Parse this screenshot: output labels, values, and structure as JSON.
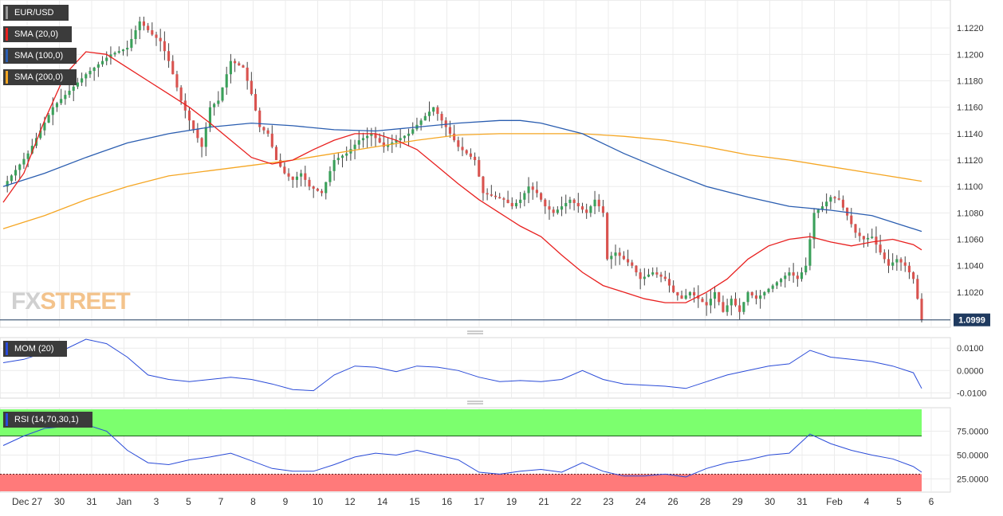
{
  "chart_data": {
    "type": "candlestick",
    "symbol": "EUR/USD",
    "current_price": "1.0999",
    "main_panel": {
      "ylim": [
        1.0994,
        1.124
      ],
      "y_ticks": [
        "1.1220",
        "1.1200",
        "1.1180",
        "1.1160",
        "1.1140",
        "1.1120",
        "1.1100",
        "1.1080",
        "1.1060",
        "1.1040",
        "1.1020"
      ],
      "grid": true
    },
    "x_tick_labels": [
      "Dec 27",
      "30",
      "31",
      "Jan",
      "3",
      "5",
      "7",
      "8",
      "9",
      "10",
      "12",
      "14",
      "15",
      "16",
      "17",
      "19",
      "21",
      "22",
      "23",
      "24",
      "26",
      "28",
      "29",
      "30",
      "31",
      "Feb",
      "4",
      "5",
      "6"
    ],
    "legend": [
      {
        "label": "EUR/USD",
        "color": "#999999"
      },
      {
        "label": "SMA (20,0)",
        "color": "#e8201f"
      },
      {
        "label": "SMA (100,0)",
        "color": "#2a5db0"
      },
      {
        "label": "SMA (200,0)",
        "color": "#f5a623"
      }
    ],
    "price_path": [
      [
        0,
        1.11
      ],
      [
        6,
        1.1125
      ],
      [
        12,
        1.116
      ],
      [
        20,
        1.1185
      ],
      [
        26,
        1.12
      ],
      [
        30,
        1.1205
      ],
      [
        33,
        1.1225
      ],
      [
        36,
        1.1215
      ],
      [
        38,
        1.121
      ],
      [
        40,
        1.1195
      ],
      [
        43,
        1.1165
      ],
      [
        45,
        1.115
      ],
      [
        48,
        1.113
      ],
      [
        50,
        1.116
      ],
      [
        52,
        1.1165
      ],
      [
        55,
        1.1195
      ],
      [
        58,
        1.119
      ],
      [
        60,
        1.117
      ],
      [
        62,
        1.1145
      ],
      [
        64,
        1.114
      ],
      [
        66,
        1.112
      ],
      [
        68,
        1.111
      ],
      [
        70,
        1.1105
      ],
      [
        72,
        1.111
      ],
      [
        74,
        1.11
      ],
      [
        77,
        1.1095
      ],
      [
        80,
        1.112
      ],
      [
        83,
        1.1125
      ],
      [
        86,
        1.1135
      ],
      [
        89,
        1.114
      ],
      [
        92,
        1.113
      ],
      [
        95,
        1.1135
      ],
      [
        98,
        1.114
      ],
      [
        101,
        1.115
      ],
      [
        104,
        1.116
      ],
      [
        106,
        1.115
      ],
      [
        108,
        1.114
      ],
      [
        110,
        1.113
      ],
      [
        112,
        1.1125
      ],
      [
        114,
        1.112
      ],
      [
        116,
        1.1095
      ],
      [
        119,
        1.1092
      ],
      [
        121,
        1.109
      ],
      [
        123,
        1.1085
      ],
      [
        125,
        1.109
      ],
      [
        127,
        1.11
      ],
      [
        129,
        1.1095
      ],
      [
        131,
        1.1085
      ],
      [
        133,
        1.108
      ],
      [
        135,
        1.1085
      ],
      [
        137,
        1.109
      ],
      [
        139,
        1.1085
      ],
      [
        141,
        1.108
      ],
      [
        143,
        1.109
      ],
      [
        145,
        1.108
      ],
      [
        146,
        1.1045
      ],
      [
        148,
        1.105
      ],
      [
        150,
        1.1045
      ],
      [
        152,
        1.104
      ],
      [
        154,
        1.103
      ],
      [
        157,
        1.1035
      ],
      [
        160,
        1.103
      ],
      [
        162,
        1.102
      ],
      [
        164,
        1.1015
      ],
      [
        166,
        1.102
      ],
      [
        168,
        1.1015
      ],
      [
        170,
        1.101
      ],
      [
        172,
        1.102
      ],
      [
        174,
        1.1005
      ],
      [
        176,
        1.1015
      ],
      [
        178,
        1.1005
      ],
      [
        180,
        1.102
      ],
      [
        182,
        1.1015
      ],
      [
        184,
        1.102
      ],
      [
        186,
        1.1025
      ],
      [
        188,
        1.103
      ],
      [
        190,
        1.1035
      ],
      [
        192,
        1.103
      ],
      [
        194,
        1.104
      ],
      [
        196,
        1.108
      ],
      [
        198,
        1.1085
      ],
      [
        200,
        1.1092
      ],
      [
        202,
        1.109
      ],
      [
        204,
        1.1078
      ],
      [
        206,
        1.1065
      ],
      [
        208,
        1.106
      ],
      [
        210,
        1.1062
      ],
      [
        212,
        1.105
      ],
      [
        214,
        1.104
      ],
      [
        216,
        1.1045
      ],
      [
        218,
        1.104
      ],
      [
        220,
        1.103
      ],
      [
        221,
        1.1015
      ],
      [
        222,
        1.0999
      ]
    ],
    "sma20_path": [
      [
        0,
        1.1088
      ],
      [
        5,
        1.111
      ],
      [
        10,
        1.115
      ],
      [
        15,
        1.1185
      ],
      [
        20,
        1.1202
      ],
      [
        25,
        1.12
      ],
      [
        30,
        1.119
      ],
      [
        35,
        1.118
      ],
      [
        40,
        1.117
      ],
      [
        45,
        1.116
      ],
      [
        50,
        1.1148
      ],
      [
        55,
        1.1135
      ],
      [
        60,
        1.1122
      ],
      [
        65,
        1.1117
      ],
      [
        70,
        1.112
      ],
      [
        75,
        1.1128
      ],
      [
        80,
        1.1135
      ],
      [
        85,
        1.114
      ],
      [
        90,
        1.114
      ],
      [
        95,
        1.1135
      ],
      [
        100,
        1.1128
      ],
      [
        105,
        1.1115
      ],
      [
        110,
        1.1102
      ],
      [
        115,
        1.109
      ],
      [
        120,
        1.108
      ],
      [
        125,
        1.107
      ],
      [
        130,
        1.1062
      ],
      [
        135,
        1.1048
      ],
      [
        140,
        1.1035
      ],
      [
        145,
        1.1025
      ],
      [
        150,
        1.102
      ],
      [
        155,
        1.1015
      ],
      [
        160,
        1.1012
      ],
      [
        165,
        1.1012
      ],
      [
        170,
        1.102
      ],
      [
        175,
        1.103
      ],
      [
        180,
        1.1045
      ],
      [
        185,
        1.1055
      ],
      [
        190,
        1.106
      ],
      [
        195,
        1.1062
      ],
      [
        200,
        1.1058
      ],
      [
        205,
        1.1055
      ],
      [
        210,
        1.1058
      ],
      [
        215,
        1.106
      ],
      [
        220,
        1.1056
      ],
      [
        222,
        1.1052
      ]
    ],
    "sma100_path": [
      [
        0,
        1.11
      ],
      [
        10,
        1.111
      ],
      [
        20,
        1.1122
      ],
      [
        30,
        1.1133
      ],
      [
        40,
        1.114
      ],
      [
        50,
        1.1145
      ],
      [
        60,
        1.1148
      ],
      [
        70,
        1.1146
      ],
      [
        80,
        1.1143
      ],
      [
        90,
        1.1142
      ],
      [
        100,
        1.1145
      ],
      [
        110,
        1.1148
      ],
      [
        120,
        1.115
      ],
      [
        125,
        1.115
      ],
      [
        130,
        1.1148
      ],
      [
        140,
        1.114
      ],
      [
        150,
        1.1125
      ],
      [
        160,
        1.1112
      ],
      [
        170,
        1.11
      ],
      [
        180,
        1.1092
      ],
      [
        190,
        1.1085
      ],
      [
        200,
        1.1082
      ],
      [
        210,
        1.1078
      ],
      [
        220,
        1.1068
      ],
      [
        222,
        1.1066
      ]
    ],
    "sma200_path": [
      [
        0,
        1.1068
      ],
      [
        10,
        1.1078
      ],
      [
        20,
        1.109
      ],
      [
        30,
        1.11
      ],
      [
        40,
        1.1108
      ],
      [
        50,
        1.1112
      ],
      [
        60,
        1.1116
      ],
      [
        70,
        1.112
      ],
      [
        80,
        1.1125
      ],
      [
        90,
        1.113
      ],
      [
        100,
        1.1135
      ],
      [
        110,
        1.1139
      ],
      [
        120,
        1.114
      ],
      [
        130,
        1.114
      ],
      [
        140,
        1.114
      ],
      [
        150,
        1.1138
      ],
      [
        160,
        1.1135
      ],
      [
        170,
        1.113
      ],
      [
        180,
        1.1124
      ],
      [
        190,
        1.112
      ],
      [
        200,
        1.1115
      ],
      [
        210,
        1.111
      ],
      [
        222,
        1.1104
      ]
    ],
    "momentum": {
      "label": "MOM (20)",
      "ylim": [
        -0.012,
        0.014
      ],
      "y_ticks": [
        "0.0100",
        "0.0000",
        "-0.0100"
      ],
      "path": [
        [
          0,
          0.0035
        ],
        [
          5,
          0.005
        ],
        [
          10,
          0.008
        ],
        [
          15,
          0.0095
        ],
        [
          20,
          0.014
        ],
        [
          25,
          0.012
        ],
        [
          30,
          0.006
        ],
        [
          35,
          -0.002
        ],
        [
          40,
          -0.004
        ],
        [
          45,
          -0.005
        ],
        [
          50,
          -0.004
        ],
        [
          55,
          -0.003
        ],
        [
          60,
          -0.004
        ],
        [
          65,
          -0.006
        ],
        [
          70,
          -0.0085
        ],
        [
          75,
          -0.009
        ],
        [
          80,
          -0.002
        ],
        [
          85,
          0.002
        ],
        [
          90,
          0.0015
        ],
        [
          95,
          -0.0005
        ],
        [
          100,
          0.002
        ],
        [
          105,
          0.0015
        ],
        [
          110,
          0.0
        ],
        [
          115,
          -0.003
        ],
        [
          120,
          -0.005
        ],
        [
          125,
          -0.0045
        ],
        [
          130,
          -0.005
        ],
        [
          135,
          -0.004
        ],
        [
          140,
          0.0
        ],
        [
          145,
          -0.004
        ],
        [
          150,
          -0.006
        ],
        [
          155,
          -0.0065
        ],
        [
          160,
          -0.007
        ],
        [
          165,
          -0.008
        ],
        [
          170,
          -0.005
        ],
        [
          175,
          -0.002
        ],
        [
          180,
          0.0
        ],
        [
          185,
          0.002
        ],
        [
          190,
          0.003
        ],
        [
          195,
          0.009
        ],
        [
          200,
          0.006
        ],
        [
          205,
          0.005
        ],
        [
          210,
          0.004
        ],
        [
          215,
          0.002
        ],
        [
          220,
          -0.001
        ],
        [
          222,
          -0.008
        ]
      ]
    },
    "rsi": {
      "label": "RSI (14,70,30,1)",
      "ylim": [
        12,
        98
      ],
      "y_ticks": [
        "75.0000",
        "50.0000",
        "25.0000"
      ],
      "overbought": 70,
      "oversold": 30,
      "overbought_color": "#7cff6e",
      "oversold_color": "#ff7a7a",
      "path": [
        [
          0,
          60
        ],
        [
          5,
          70
        ],
        [
          10,
          78
        ],
        [
          15,
          80
        ],
        [
          20,
          82
        ],
        [
          25,
          75
        ],
        [
          30,
          55
        ],
        [
          35,
          42
        ],
        [
          40,
          40
        ],
        [
          45,
          45
        ],
        [
          50,
          48
        ],
        [
          55,
          52
        ],
        [
          60,
          44
        ],
        [
          65,
          36
        ],
        [
          70,
          33
        ],
        [
          75,
          33
        ],
        [
          80,
          40
        ],
        [
          85,
          48
        ],
        [
          90,
          52
        ],
        [
          95,
          50
        ],
        [
          100,
          55
        ],
        [
          105,
          50
        ],
        [
          110,
          45
        ],
        [
          115,
          32
        ],
        [
          120,
          30
        ],
        [
          125,
          33
        ],
        [
          130,
          35
        ],
        [
          135,
          32
        ],
        [
          140,
          42
        ],
        [
          145,
          33
        ],
        [
          150,
          28
        ],
        [
          155,
          28
        ],
        [
          160,
          30
        ],
        [
          165,
          27
        ],
        [
          170,
          36
        ],
        [
          175,
          42
        ],
        [
          180,
          45
        ],
        [
          185,
          50
        ],
        [
          190,
          52
        ],
        [
          195,
          72
        ],
        [
          200,
          62
        ],
        [
          205,
          55
        ],
        [
          210,
          50
        ],
        [
          215,
          46
        ],
        [
          220,
          38
        ],
        [
          222,
          32
        ]
      ]
    }
  },
  "watermark": "FXSTREET"
}
